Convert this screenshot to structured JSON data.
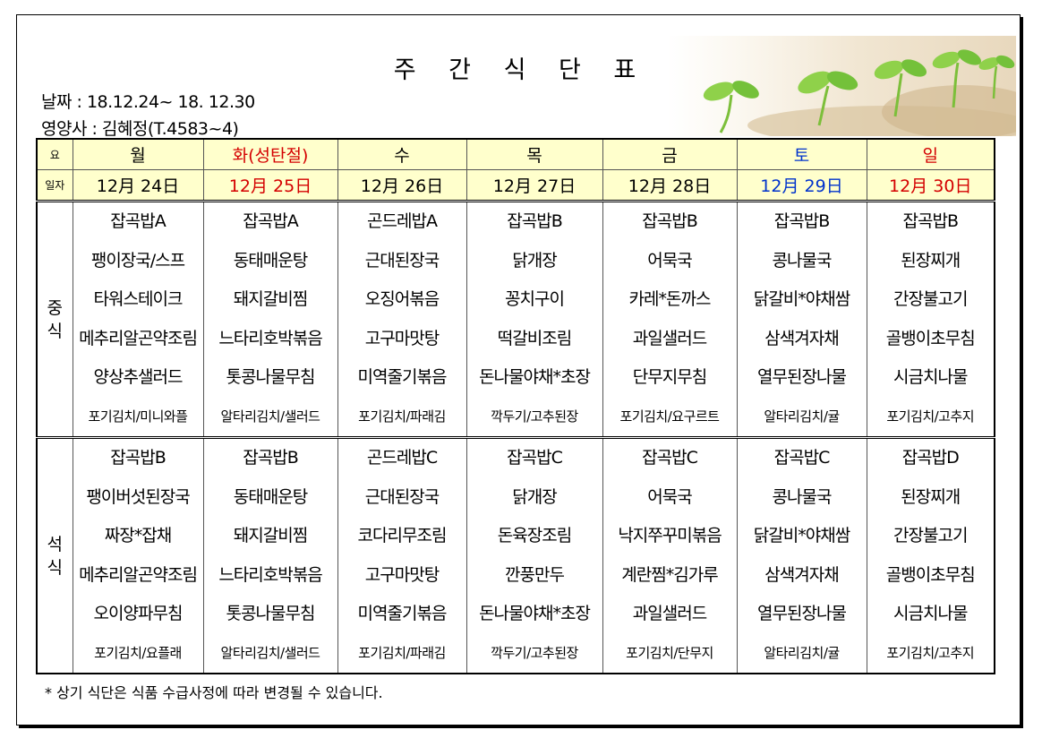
{
  "title": "주 간 식 단 표",
  "date_line": "날짜 : 18.12.24~ 18. 12.30",
  "nutritionist_line": "영양사 : 김혜정(T.4583~4)",
  "header": {
    "day_label": "요",
    "date_label": "일자",
    "days": [
      {
        "name": "월",
        "date": "12月 24日",
        "color": "#000000"
      },
      {
        "name": "화(성탄절)",
        "date": "12月 25日",
        "color": "#d40000"
      },
      {
        "name": "수",
        "date": "12月 26日",
        "color": "#000000"
      },
      {
        "name": "목",
        "date": "12月 27日",
        "color": "#000000"
      },
      {
        "name": "금",
        "date": "12月 28日",
        "color": "#000000"
      },
      {
        "name": "토",
        "date": "12月 29日",
        "color": "#0033cc"
      },
      {
        "name": "일",
        "date": "12月 30日",
        "color": "#d40000"
      }
    ]
  },
  "lunch": {
    "label_1": "중",
    "label_2": "식",
    "days": [
      [
        "잡곡밥A",
        "팽이장국/스프",
        "타워스테이크",
        "메추리알곤약조림",
        "양상추샐러드",
        "포기김치/미니와플"
      ],
      [
        "잡곡밥A",
        "동태매운탕",
        "돼지갈비찜",
        "느타리호박볶음",
        "톳콩나물무침",
        "알타리김치/샐러드"
      ],
      [
        "곤드레밥A",
        "근대된장국",
        "오징어볶음",
        "고구마맛탕",
        "미역줄기볶음",
        "포기김치/파래김"
      ],
      [
        "잡곡밥B",
        "닭개장",
        "꽁치구이",
        "떡갈비조림",
        "돈나물야채*초장",
        "깍두기/고추된장"
      ],
      [
        "잡곡밥B",
        "어묵국",
        "카레*돈까스",
        "과일샐러드",
        "단무지무침",
        "포기김치/요구르트"
      ],
      [
        "잡곡밥B",
        "콩나물국",
        "닭갈비*야채쌈",
        "삼색겨자채",
        "열무된장나물",
        "알타리김치/귤"
      ],
      [
        "잡곡밥B",
        "된장찌개",
        "간장불고기",
        "골뱅이초무침",
        "시금치나물",
        "포기김치/고추지"
      ]
    ]
  },
  "dinner": {
    "label_1": "석",
    "label_2": "식",
    "days": [
      [
        "잡곡밥B",
        "팽이버섯된장국",
        "짜장*잡채",
        "메추리알곤약조림",
        "오이양파무침",
        "포기김치/요플래"
      ],
      [
        "잡곡밥B",
        "동태매운탕",
        "돼지갈비찜",
        "느타리호박볶음",
        "톳콩나물무침",
        "알타리김치/샐러드"
      ],
      [
        "곤드레밥C",
        "근대된장국",
        "코다리무조림",
        "고구마맛탕",
        "미역줄기볶음",
        "포기김치/파래김"
      ],
      [
        "잡곡밥C",
        "닭개장",
        "돈육장조림",
        "깐풍만두",
        "돈나물야채*초장",
        "깍두기/고추된장"
      ],
      [
        "잡곡밥C",
        "어묵국",
        "낙지쭈꾸미볶음",
        "계란찜*김가루",
        "과일샐러드",
        "포기김치/단무지"
      ],
      [
        "잡곡밥C",
        "콩나물국",
        "닭갈비*야채쌈",
        "삼색겨자채",
        "열무된장나물",
        "알타리김치/귤"
      ],
      [
        "잡곡밥D",
        "된장찌개",
        "간장불고기",
        "골뱅이초무침",
        "시금치나물",
        "포기김치/고추지"
      ]
    ]
  },
  "footnote": "* 상기 식단은 식품 수급사정에 따라 변경될 수 있습니다."
}
